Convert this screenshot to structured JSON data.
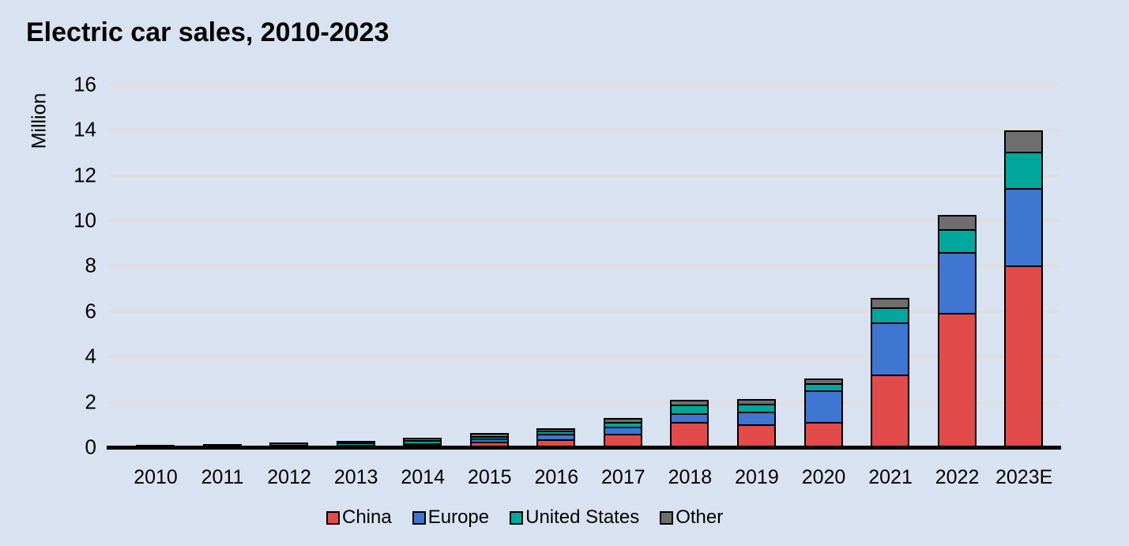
{
  "header": {
    "title": "Electric car sales, 2010-2023"
  },
  "colors": {
    "background": "#d9e2f0",
    "gridline": "#e0ddd6",
    "axis": "#000000",
    "bar_border": "#000000",
    "text": "#000000"
  },
  "y_axis": {
    "label": "Million",
    "tick_labels": [
      "0",
      "2",
      "4",
      "6",
      "8",
      "10",
      "12",
      "14",
      "16"
    ]
  },
  "chart_data": {
    "type": "bar",
    "stacked": true,
    "title": "Electric car sales, 2010-2023",
    "xlabel": "",
    "ylabel": "Million",
    "ylim": [
      0,
      16
    ],
    "ytick_step": 2,
    "grid": true,
    "legend_position": "bottom",
    "categories": [
      "2010",
      "2011",
      "2012",
      "2013",
      "2014",
      "2015",
      "2016",
      "2017",
      "2018",
      "2019",
      "2020",
      "2021",
      "2022",
      "2023E"
    ],
    "series": [
      {
        "name": "China",
        "color": "#e14b49",
        "values": [
          0.005,
          0.01,
          0.012,
          0.015,
          0.07,
          0.21,
          0.34,
          0.58,
          1.08,
          1.0,
          1.1,
          3.2,
          5.9,
          8.0
        ]
      },
      {
        "name": "Europe",
        "color": "#3e76d1",
        "values": [
          0.002,
          0.01,
          0.032,
          0.07,
          0.1,
          0.15,
          0.22,
          0.31,
          0.41,
          0.56,
          1.4,
          2.3,
          2.7,
          3.4
        ]
      },
      {
        "name": "United States",
        "color": "#01a79d",
        "values": [
          0.002,
          0.018,
          0.053,
          0.096,
          0.12,
          0.115,
          0.16,
          0.2,
          0.36,
          0.33,
          0.3,
          0.65,
          1.0,
          1.6
        ]
      },
      {
        "name": "Other",
        "color": "#6e6e6e",
        "values": [
          0.001,
          0.012,
          0.033,
          0.019,
          0.03,
          0.065,
          0.03,
          0.1,
          0.15,
          0.16,
          0.15,
          0.35,
          0.55,
          0.9
        ]
      }
    ],
    "totals": [
      0.01,
      0.05,
      0.13,
      0.2,
      0.32,
      0.54,
      0.75,
      1.19,
      2.0,
      2.05,
      2.95,
      6.5,
      10.15,
      13.9
    ]
  }
}
